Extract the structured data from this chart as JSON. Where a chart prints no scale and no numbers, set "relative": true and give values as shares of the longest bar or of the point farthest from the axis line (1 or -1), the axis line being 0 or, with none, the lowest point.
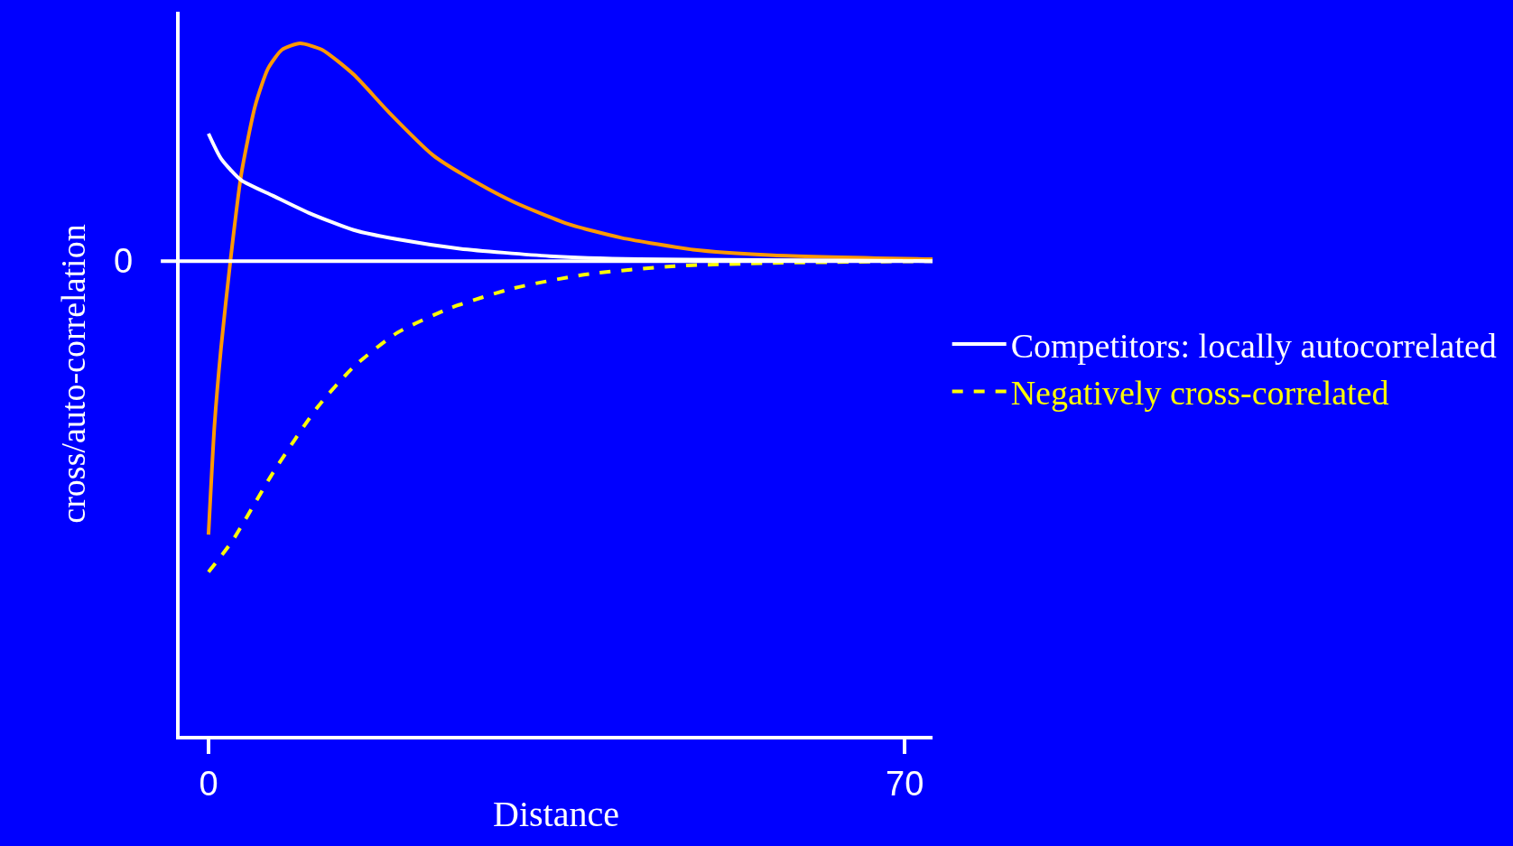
{
  "chart_data": {
    "type": "line",
    "relative": true,
    "xlabel": "Distance",
    "ylabel": "cross/auto-correlation",
    "xlim": [
      -2.9,
      72.8
    ],
    "xticks": [
      0,
      70
    ],
    "grid": false,
    "legend": "right",
    "marker": "none",
    "ref_lines": [
      {
        "axis": "y",
        "value": 0,
        "label": "0",
        "color": "#ffffff"
      }
    ],
    "series": [
      {
        "color": "#ff9900",
        "line_style": "solid",
        "x": [
          0,
          0.6,
          1.26,
          2.2,
          3.3,
          4.7,
          6.0,
          7.4,
          9.2,
          11.4,
          14.6,
          18.1,
          22.6,
          27.1,
          30.7,
          36.1,
          41.5,
          48.7,
          56.8,
          72.8
        ],
        "values": [
          -0.88,
          -0.53,
          -0.28,
          0,
          0.28,
          0.5,
          0.62,
          0.68,
          0.7,
          0.68,
          0.6,
          0.48,
          0.34,
          0.25,
          0.19,
          0.12,
          0.075,
          0.037,
          0.019,
          0.006
        ]
      },
      {
        "name": "Competitors: locally autocorrelated",
        "color": "#ffffff",
        "line_style": "solid",
        "x": [
          0,
          1.26,
          3.3,
          6.5,
          10.1,
          14.6,
          19,
          25.3,
          34.3,
          43.3,
          72.8
        ],
        "values": [
          0.41,
          0.33,
          0.26,
          0.21,
          0.155,
          0.1,
          0.07,
          0.04,
          0.016,
          0.006,
          0
        ]
      },
      {
        "name": "Negatively cross-correlated",
        "color": "#ffff00",
        "line_style": "dashed",
        "x": [
          0,
          2.4,
          6.5,
          10.96,
          14.6,
          19,
          24.4,
          30.7,
          37.9,
          46.9,
          56.8,
          72.8
        ],
        "values": [
          -1,
          -0.9,
          -0.68,
          -0.47,
          -0.34,
          -0.23,
          -0.15,
          -0.087,
          -0.043,
          -0.016,
          -0.006,
          0
        ]
      }
    ]
  }
}
